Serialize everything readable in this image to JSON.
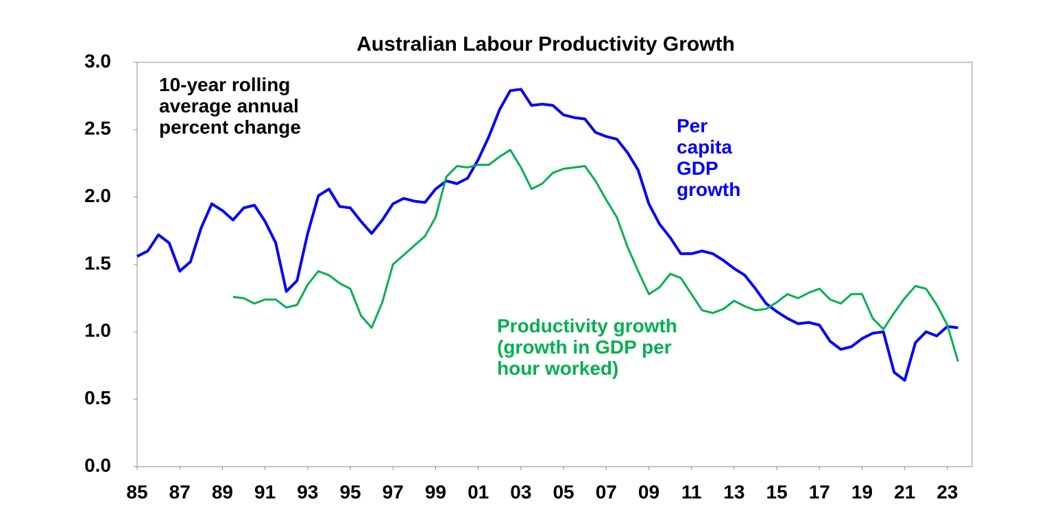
{
  "chart_data": {
    "type": "line",
    "title": "Australian Labour Productivity Growth",
    "annotation": "10-year rolling\naverage annual\npercent change",
    "x": [
      1985.0,
      1985.5,
      1986.0,
      1986.5,
      1987.0,
      1987.5,
      1988.0,
      1988.5,
      1989.0,
      1989.5,
      1990.0,
      1990.5,
      1991.0,
      1991.5,
      1992.0,
      1992.5,
      1993.0,
      1993.5,
      1994.0,
      1994.5,
      1995.0,
      1995.5,
      1996.0,
      1996.5,
      1997.0,
      1997.5,
      1998.0,
      1998.5,
      1999.0,
      1999.5,
      2000.0,
      2000.5,
      2001.0,
      2001.5,
      2002.0,
      2002.5,
      2003.0,
      2003.5,
      2004.0,
      2004.5,
      2005.0,
      2005.5,
      2006.0,
      2006.5,
      2007.0,
      2007.5,
      2008.0,
      2008.5,
      2009.0,
      2009.5,
      2010.0,
      2010.5,
      2011.0,
      2011.5,
      2012.0,
      2012.5,
      2013.0,
      2013.5,
      2014.0,
      2014.5,
      2015.0,
      2015.5,
      2016.0,
      2016.5,
      2017.0,
      2017.5,
      2018.0,
      2018.5,
      2019.0,
      2019.5,
      2020.0,
      2020.5,
      2021.0,
      2021.5,
      2022.0,
      2022.5,
      2023.0,
      2023.5
    ],
    "series": [
      {
        "name": "Per\ncapita\nGDP\ngrowth",
        "color": "#0000ff",
        "values": [
          1.56,
          1.6,
          1.72,
          1.66,
          1.45,
          1.52,
          1.77,
          1.95,
          1.9,
          1.83,
          1.92,
          1.94,
          1.82,
          1.66,
          1.3,
          1.38,
          1.73,
          2.01,
          2.06,
          1.93,
          1.92,
          1.82,
          1.73,
          1.83,
          1.95,
          1.99,
          1.97,
          1.96,
          2.06,
          2.12,
          2.1,
          2.14,
          2.28,
          2.45,
          2.65,
          2.79,
          2.8,
          2.68,
          2.69,
          2.68,
          2.61,
          2.59,
          2.58,
          2.48,
          2.45,
          2.43,
          2.33,
          2.2,
          1.95,
          1.8,
          1.7,
          1.58,
          1.58,
          1.6,
          1.58,
          1.53,
          1.47,
          1.42,
          1.32,
          1.21,
          1.15,
          1.1,
          1.06,
          1.07,
          1.05,
          0.93,
          0.87,
          0.89,
          0.95,
          0.99,
          1.0,
          0.7,
          0.64,
          0.92,
          1.0,
          0.97,
          1.04,
          1.03
        ]
      },
      {
        "name": "Productivity growth\n(growth in GDP per\nhour worked)",
        "color": "#00b050",
        "values": [
          null,
          null,
          null,
          null,
          null,
          null,
          null,
          null,
          null,
          1.26,
          1.25,
          1.21,
          1.24,
          1.24,
          1.18,
          1.2,
          1.35,
          1.45,
          1.42,
          1.36,
          1.32,
          1.12,
          1.03,
          1.22,
          1.5,
          1.57,
          1.64,
          1.71,
          1.85,
          2.15,
          2.23,
          2.22,
          2.24,
          2.24,
          2.3,
          2.35,
          2.22,
          2.06,
          2.1,
          2.18,
          2.21,
          2.22,
          2.23,
          2.12,
          1.98,
          1.85,
          1.63,
          1.45,
          1.28,
          1.33,
          1.43,
          1.4,
          1.28,
          1.16,
          1.14,
          1.17,
          1.23,
          1.19,
          1.16,
          1.17,
          1.22,
          1.28,
          1.25,
          1.29,
          1.32,
          1.24,
          1.21,
          1.28,
          1.28,
          1.1,
          1.02,
          1.14,
          1.25,
          1.34,
          1.32,
          1.2,
          1.05,
          0.78
        ]
      }
    ],
    "xlim": [
      1985,
      2024.16
    ],
    "xticks": [
      {
        "value": 1985,
        "label": "85"
      },
      {
        "value": 1987,
        "label": "87"
      },
      {
        "value": 1989,
        "label": "89"
      },
      {
        "value": 1991,
        "label": "91"
      },
      {
        "value": 1993,
        "label": "93"
      },
      {
        "value": 1995,
        "label": "95"
      },
      {
        "value": 1997,
        "label": "97"
      },
      {
        "value": 1999,
        "label": "99"
      },
      {
        "value": 2001,
        "label": "01"
      },
      {
        "value": 2003,
        "label": "03"
      },
      {
        "value": 2005,
        "label": "05"
      },
      {
        "value": 2007,
        "label": "07"
      },
      {
        "value": 2009,
        "label": "09"
      },
      {
        "value": 2011,
        "label": "11"
      },
      {
        "value": 2013,
        "label": "13"
      },
      {
        "value": 2015,
        "label": "15"
      },
      {
        "value": 2017,
        "label": "17"
      },
      {
        "value": 2019,
        "label": "19"
      },
      {
        "value": 2021,
        "label": "21"
      },
      {
        "value": 2023,
        "label": "23"
      }
    ],
    "ylim": [
      0,
      3
    ],
    "yticks": [
      {
        "value": 0,
        "label": "0.0"
      },
      {
        "value": 0.5,
        "label": "0.5"
      },
      {
        "value": 1,
        "label": "1.0"
      },
      {
        "value": 1.5,
        "label": "1.5"
      },
      {
        "value": 2,
        "label": "2.0"
      },
      {
        "value": 2.5,
        "label": "2.5"
      },
      {
        "value": 3,
        "label": "3.0"
      }
    ],
    "grid": false
  }
}
